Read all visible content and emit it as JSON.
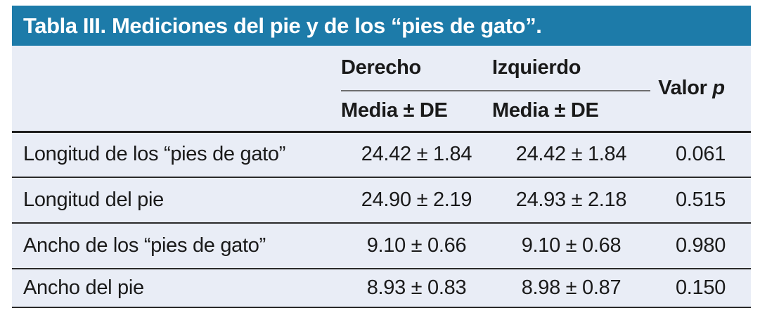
{
  "title": "Tabla III. Mediciones del pie y de los “pies de gato”.",
  "colors": {
    "title_bar_bg": "#1d7ba9",
    "title_text": "#ffffff",
    "table_bg": "#e9edf6",
    "body_text": "#1a1a1a",
    "group_rule": "#6e6e6e",
    "row_rule": "#2a2a2a"
  },
  "header": {
    "groups": [
      {
        "label": "Derecho",
        "sub": "Media ± DE"
      },
      {
        "label": "Izquierdo",
        "sub": "Media ± DE"
      }
    ],
    "valor": {
      "prefix": "Valor ",
      "p": "p"
    }
  },
  "rows": [
    {
      "label": "Longitud de los “pies de gato”",
      "derecho": "24.42 ± 1.84",
      "izquierdo": "24.42 ± 1.84",
      "p": "0.061"
    },
    {
      "label": "Longitud del pie",
      "derecho": "24.90 ± 2.19",
      "izquierdo": "24.93 ± 2.18",
      "p": "0.515"
    },
    {
      "label": "Ancho de los “pies de gato”",
      "derecho": "9.10 ± 0.66",
      "izquierdo": "9.10 ± 0.68",
      "p": "0.980"
    },
    {
      "label": "Ancho del pie",
      "derecho": "8.93 ± 0.83",
      "izquierdo": "8.98 ± 0.87",
      "p": "0.150"
    }
  ]
}
